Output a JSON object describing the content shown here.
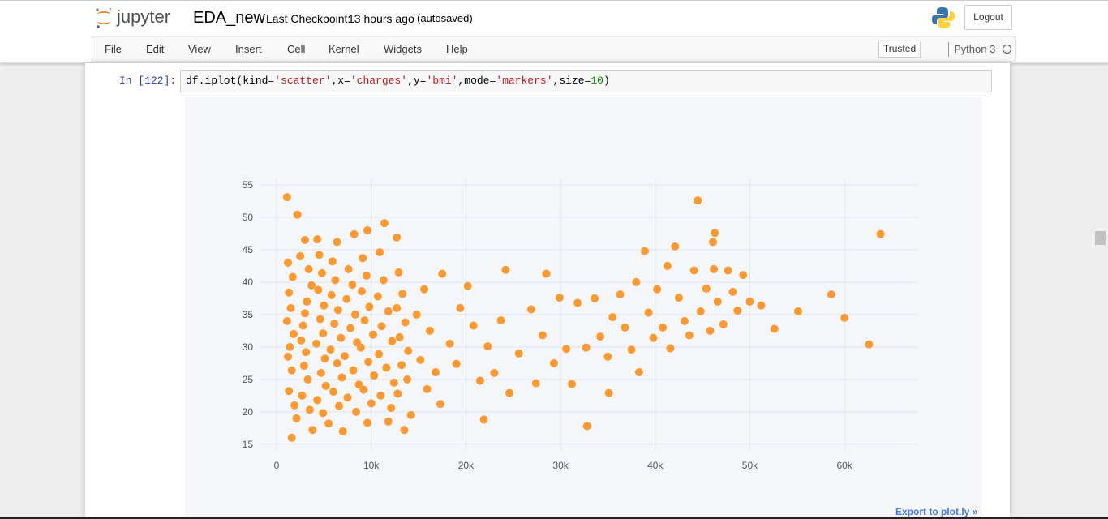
{
  "header": {
    "logo": "jupyter",
    "notebook_name": "EDA_new",
    "checkpoint_label": "Last Checkpoint:",
    "checkpoint_time": "13 hours ago",
    "autosave": "(autosaved)",
    "logout": "Logout"
  },
  "menu": {
    "items": [
      "File",
      "Edit",
      "View",
      "Insert",
      "Cell",
      "Kernel",
      "Widgets",
      "Help"
    ],
    "trusted": "Trusted",
    "kernel": "Python 3"
  },
  "cell": {
    "prompt": "In [122]:",
    "code_tokens": [
      "df.iplot(kind=",
      "'scatter'",
      ",x=",
      "'charges'",
      ",y=",
      "'bmi'",
      ",mode=",
      "'markers'",
      ",size=",
      "10",
      ")"
    ]
  },
  "export_link": "Export to plot.ly »",
  "chart_data": {
    "type": "scatter",
    "color": "#ff9933",
    "grid": true,
    "xlim": [
      -1800,
      67700
    ],
    "ylim": [
      14.1,
      56
    ],
    "xticks": [
      0,
      {
        "value": 10000,
        "label": "10k"
      },
      {
        "value": 20000,
        "label": "20k"
      },
      {
        "value": 30000,
        "label": "30k"
      },
      {
        "value": 40000,
        "label": "40k"
      },
      {
        "value": 50000,
        "label": "50k"
      },
      {
        "value": 60000,
        "label": "60k"
      }
    ],
    "yticks": [
      15,
      20,
      25,
      30,
      35,
      40,
      45,
      50,
      55
    ],
    "x": [
      1100,
      2200,
      11400,
      9600,
      12700,
      8200,
      4300,
      3000,
      6400,
      1200,
      1700,
      1300,
      1500,
      1100,
      1800,
      1400,
      1200,
      1600,
      1300,
      1900,
      2100,
      1600,
      2500,
      3400,
      3700,
      3200,
      3000,
      2800,
      2600,
      3100,
      2900,
      3300,
      2700,
      3500,
      3800,
      4500,
      4800,
      4400,
      5000,
      4600,
      4900,
      4200,
      5100,
      4700,
      5200,
      4300,
      4900,
      5500,
      5900,
      6200,
      5800,
      6500,
      6100,
      6800,
      5700,
      6400,
      6900,
      6000,
      6600,
      7000,
      7600,
      8000,
      7400,
      8300,
      7800,
      8500,
      7200,
      8100,
      8700,
      7500,
      8400,
      9100,
      9500,
      9000,
      9800,
      9300,
      10200,
      8900,
      9700,
      10300,
      9200,
      10000,
      9600,
      10900,
      11300,
      10700,
      11800,
      11100,
      12200,
      10800,
      11600,
      12400,
      11000,
      12100,
      11800,
      12900,
      13300,
      12700,
      13600,
      13000,
      13900,
      13200,
      13800,
      12800,
      14200,
      13500,
      14800,
      15600,
      16200,
      17500,
      15200,
      16800,
      15900,
      17300,
      18300,
      19400,
      20200,
      19000,
      20800,
      21500,
      22300,
      21900,
      23000,
      24200,
      23700,
      24600,
      25600,
      26900,
      27400,
      28500,
      28100,
      29300,
      29900,
      30600,
      31800,
      31200,
      32700,
      32800,
      33600,
      34200,
      35000,
      35100,
      35500,
      36300,
      36800,
      37500,
      38000,
      38300,
      38900,
      39300,
      39800,
      40200,
      40800,
      41300,
      41600,
      42100,
      42500,
      43100,
      43600,
      44100,
      44500,
      44800,
      45400,
      45800,
      46100,
      46300,
      46200,
      46600,
      47200,
      47700,
      48200,
      48700,
      49300,
      50000,
      51200,
      52600,
      55100,
      58600,
      60000,
      62600,
      63800
    ],
    "values": [
      53.1,
      50.4,
      49.1,
      48,
      46.9,
      47.4,
      46.6,
      46.5,
      46.2,
      43,
      40.8,
      38.4,
      36,
      34,
      32,
      30,
      28.5,
      26.4,
      23.2,
      21,
      19,
      16,
      44,
      42,
      39.5,
      37,
      35.2,
      33.3,
      31,
      29.2,
      27.1,
      25,
      22.5,
      20.3,
      17.2,
      44.2,
      41.4,
      38.8,
      36.4,
      34.3,
      32.1,
      30.5,
      28.2,
      26,
      24,
      21.8,
      19.8,
      18.2,
      43.2,
      40.3,
      38,
      35.7,
      33.6,
      31.4,
      29.6,
      27.5,
      25.3,
      23.1,
      20.9,
      17,
      42,
      39.6,
      37.4,
      35,
      32.9,
      30.7,
      28.6,
      26.4,
      24.2,
      22.2,
      20,
      43.7,
      41,
      38.6,
      36.2,
      34.1,
      31.9,
      29.9,
      27.7,
      25.6,
      23.4,
      21.3,
      18.3,
      44.6,
      40.3,
      37.8,
      35.5,
      33.2,
      30.9,
      28.9,
      26.8,
      24.5,
      22.5,
      20.6,
      18.5,
      41.5,
      38.2,
      36,
      33.8,
      31.5,
      29.4,
      27.2,
      25,
      22.8,
      19.5,
      17.2,
      35,
      38.9,
      32.5,
      41.3,
      28,
      26.1,
      23.5,
      21.2,
      30.5,
      36,
      39.4,
      27.4,
      33.3,
      24.8,
      30.1,
      18.8,
      26,
      41.9,
      34.1,
      22.9,
      29,
      35.8,
      24.4,
      41.3,
      31.8,
      27.5,
      37.6,
      29.7,
      36.8,
      24.3,
      29.9,
      17.8,
      37.5,
      31.6,
      28.5,
      22.9,
      34.6,
      38.1,
      33,
      29.6,
      40,
      26.1,
      44.8,
      35.3,
      31.4,
      38.9,
      33,
      42.5,
      29.8,
      45.5,
      37.6,
      34,
      31.8,
      41.8,
      52.6,
      35.5,
      39,
      32.5,
      46.2,
      47.6,
      42,
      37,
      33.5,
      41.8,
      38.5,
      35.6,
      41.1,
      37,
      36.4,
      32.8,
      35.5,
      38.1,
      34.5,
      30.4,
      47.4
    ]
  }
}
